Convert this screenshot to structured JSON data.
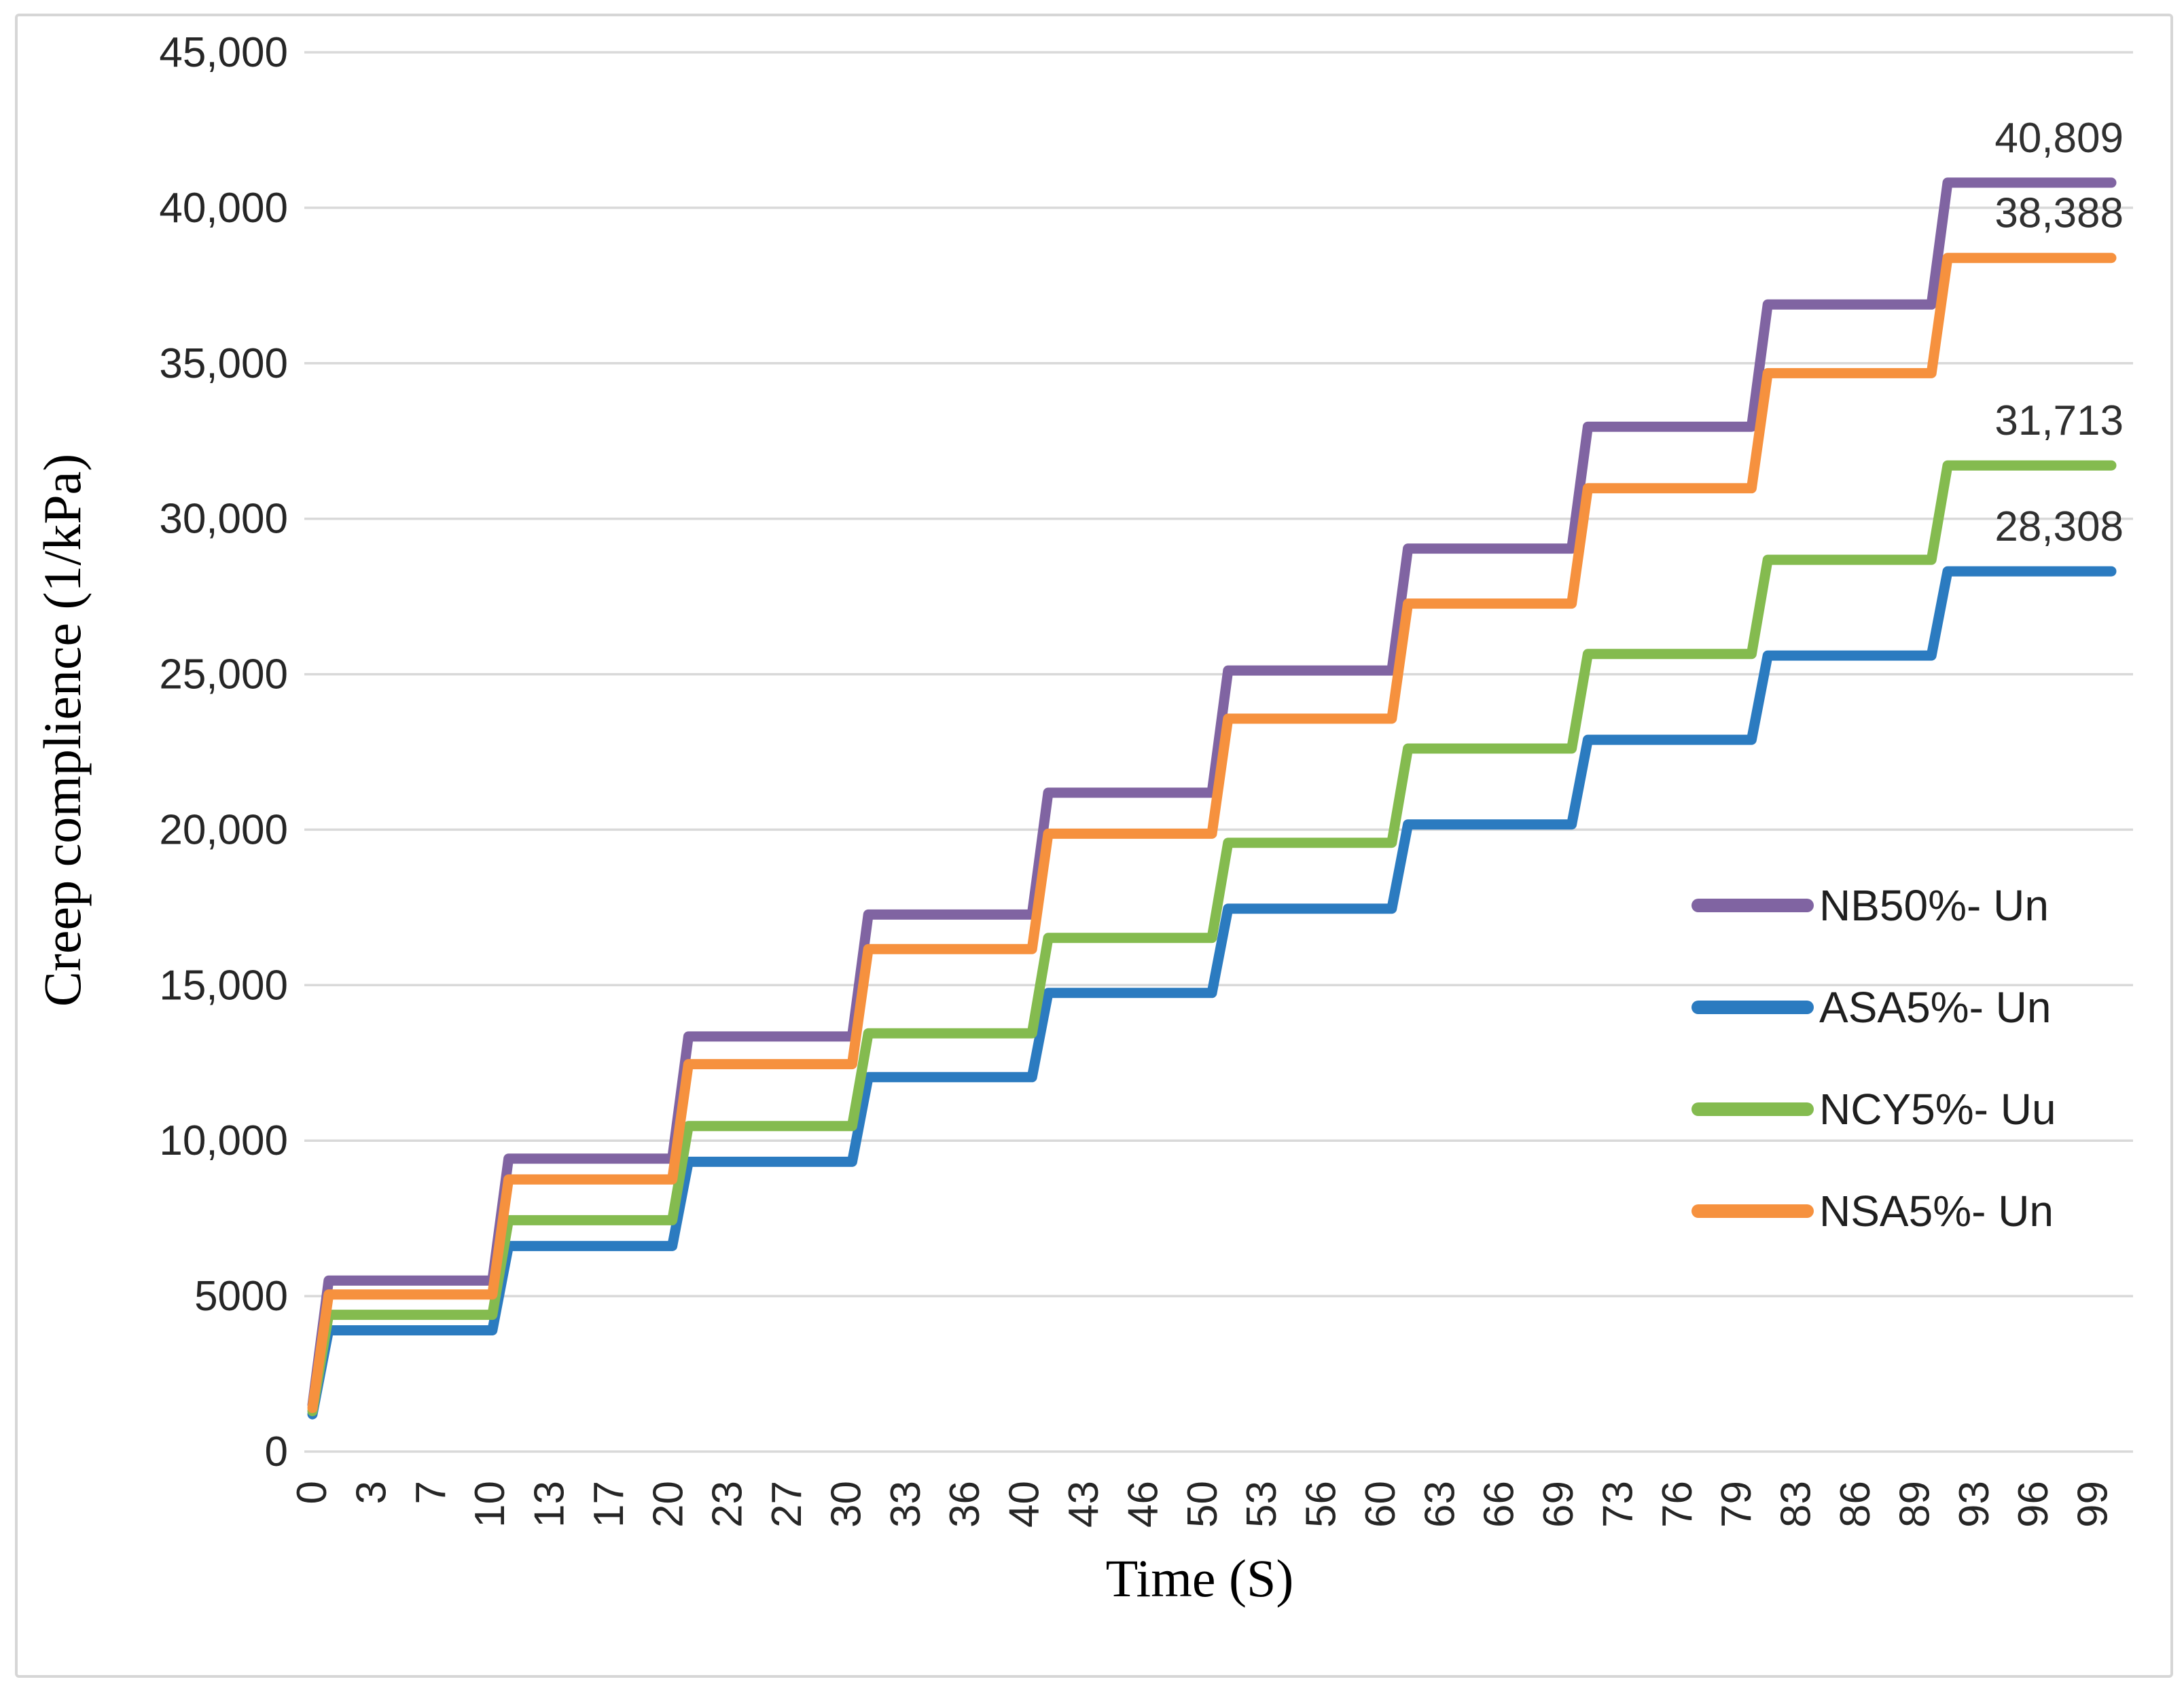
{
  "figure": {
    "background_color": "#ffffff",
    "border_color": "#d6d6d6"
  },
  "chart_data": {
    "type": "line",
    "line_style": "step",
    "title": "",
    "xlabel": "Time (S)",
    "ylabel": "Creep complience (1/kPa)",
    "grid": true,
    "x_range": [
      0,
      100
    ],
    "y_range": [
      0,
      45000
    ],
    "x_tick_labels": [
      "0",
      "3",
      "7",
      "10",
      "13",
      "17",
      "20",
      "23",
      "27",
      "30",
      "33",
      "36",
      "40",
      "43",
      "46",
      "50",
      "53",
      "56",
      "60",
      "63",
      "66",
      "69",
      "73",
      "76",
      "79",
      "83",
      "86",
      "89",
      "93",
      "96",
      "99"
    ],
    "x_tick_interval": 3.3,
    "y_ticks": [
      {
        "value": 0,
        "label": "0"
      },
      {
        "value": 5000,
        "label": "5000"
      },
      {
        "value": 10000,
        "label": "10,000"
      },
      {
        "value": 15000,
        "label": "15,000"
      },
      {
        "value": 20000,
        "label": "20,000"
      },
      {
        "value": 25000,
        "label": "25,000"
      },
      {
        "value": 30000,
        "label": "30,000"
      },
      {
        "value": 35000,
        "label": "35,000"
      },
      {
        "value": 40000,
        "label": "40,000"
      },
      {
        "value": 45000,
        "label": "45,000"
      }
    ],
    "step_times": [
      0,
      10,
      20,
      30,
      40,
      50,
      60,
      70,
      80,
      90
    ],
    "step_ramp_seconds": 0.9,
    "legend": {
      "position": "inside-right",
      "items": [
        "NB50%- Un",
        "ASA5%- Un",
        "NCY5%- Uu",
        "NSA5%- Un"
      ]
    },
    "series": [
      {
        "name": "NB50%- Un",
        "color": "#8064A2",
        "start": 1500,
        "plateaus": [
          5500,
          9420,
          13350,
          17270,
          21190,
          25120,
          29040,
          32960,
          36890,
          40809
        ],
        "end_value": 40809,
        "end_label": "40,809"
      },
      {
        "name": "ASA5%- Un",
        "color": "#2B7BC0",
        "start": 1200,
        "plateaus": [
          3900,
          6610,
          9320,
          12040,
          14750,
          17460,
          20170,
          22890,
          25600,
          28308
        ],
        "end_value": 28308,
        "end_label": "28,308"
      },
      {
        "name": "NCY5%- Uu",
        "color": "#84BB4F",
        "start": 1300,
        "plateaus": [
          4400,
          7440,
          10470,
          13450,
          16520,
          19580,
          22610,
          25650,
          28680,
          31713
        ],
        "end_value": 31713,
        "end_label": "31,713"
      },
      {
        "name": "NSA5%- Un",
        "color": "#F6913E",
        "start": 1400,
        "plateaus": [
          5050,
          8750,
          12460,
          16160,
          19870,
          23570,
          27270,
          30980,
          34680,
          38388
        ],
        "end_value": 38388,
        "end_label": "38,388"
      }
    ]
  }
}
